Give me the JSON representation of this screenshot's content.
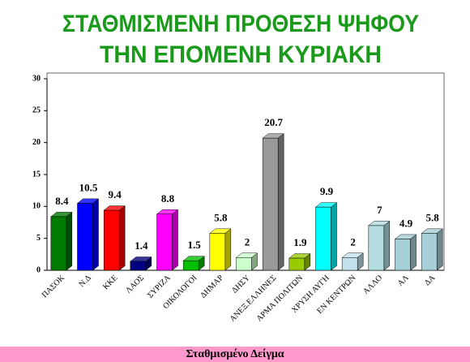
{
  "chart_data": {
    "type": "bar3d",
    "title": "ΣΤΑΘΜΙΣΜΕΝΗ ΠΡΟΘΕΣΗ ΨΗΦΟΥ",
    "subtitle": "ΤΗΝ ΕΠΟΜΕΝΗ ΚΥΡΙΑΚΗ",
    "footer": "Σταθμισμένο Δείγμα",
    "categories": [
      "ΠΑΣΟΚ",
      "Ν.Δ",
      "ΚΚΕ",
      "ΛΑΟΣ",
      "ΣΥΡΙΖΑ",
      "ΟΙΚΟΛΟΓΟΙ",
      "ΔΗΜΑΡ",
      "ΔΗΣΥ",
      "ΑΝΕΞ.ΕΛΛΗΝΕΣ",
      "ΑΡΜΑ ΠΟΛΙΤΩΝ",
      "ΧΡΥΣΗ ΑΥΓΗ",
      "ΕΝ ΚΕΝΤΡΩΝ",
      "ΑΛΛΟ",
      "ΑΛ",
      "ΔΑ"
    ],
    "values": [
      8.4,
      10.5,
      9.4,
      1.4,
      8.8,
      1.5,
      5.8,
      2,
      20.7,
      1.9,
      9.9,
      2,
      7,
      4.9,
      5.8
    ],
    "colors": [
      "#007a00",
      "#0000ff",
      "#ff0000",
      "#000080",
      "#ff00ff",
      "#00c000",
      "#ffff00",
      "#ccffcc",
      "#999999",
      "#99cc00",
      "#00ffff",
      "#c4e2ee",
      "#b4dde0",
      "#a8d0d8",
      "#a8d0d8"
    ],
    "ylim": [
      0,
      30
    ],
    "yticks": [
      0,
      5,
      10,
      15,
      20,
      25,
      30
    ]
  }
}
